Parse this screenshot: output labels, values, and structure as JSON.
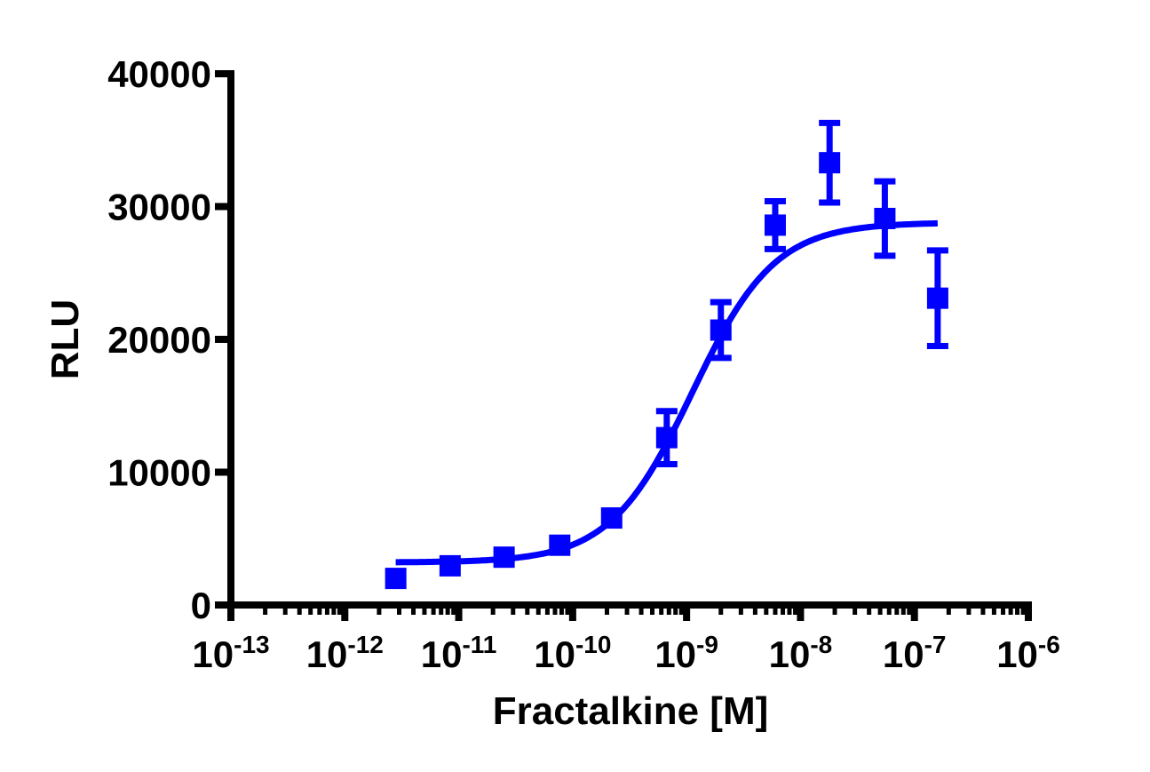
{
  "chart_data": {
    "type": "scatter",
    "title": "",
    "xlabel": "Fractalkine [M]",
    "ylabel": "RLU",
    "xscale": "log",
    "xlim": [
      1e-13,
      1e-06
    ],
    "ylim": [
      0,
      40000
    ],
    "grid": false,
    "legend": null,
    "x_tick_labels": [
      {
        "base": "10",
        "exp": "-13"
      },
      {
        "base": "10",
        "exp": "-12"
      },
      {
        "base": "10",
        "exp": "-11"
      },
      {
        "base": "10",
        "exp": "-10"
      },
      {
        "base": "10",
        "exp": "-9"
      },
      {
        "base": "10",
        "exp": "-8"
      },
      {
        "base": "10",
        "exp": "-7"
      },
      {
        "base": "10",
        "exp": "-6"
      }
    ],
    "y_ticks": [
      0,
      10000,
      20000,
      30000,
      40000
    ],
    "y_tick_labels": [
      "0",
      "10000",
      "20000",
      "30000",
      "40000"
    ],
    "series": [
      {
        "name": "Fractalkine",
        "color": "#0000ff",
        "marker": "square",
        "x": [
          2.8e-12,
          8.4e-12,
          2.5e-11,
          7.7e-11,
          2.2e-10,
          6.7e-10,
          2e-09,
          6e-09,
          1.8e-08,
          5.5e-08,
          1.6e-07
        ],
        "y": [
          2000,
          2950,
          3600,
          4500,
          6550,
          12600,
          20700,
          28600,
          33300,
          29100,
          23100
        ],
        "error": [
          0,
          0,
          0,
          0,
          0,
          2000,
          2100,
          1800,
          3000,
          2800,
          3600
        ]
      }
    ],
    "fit": {
      "type": "sigmoidal dose-response",
      "color": "#0000ff",
      "bottom": 3200,
      "top": 28800,
      "log_ec50": -8.95,
      "hill_slope": 1.2,
      "x_range": [
        2.8e-12,
        1.6e-07
      ]
    }
  }
}
